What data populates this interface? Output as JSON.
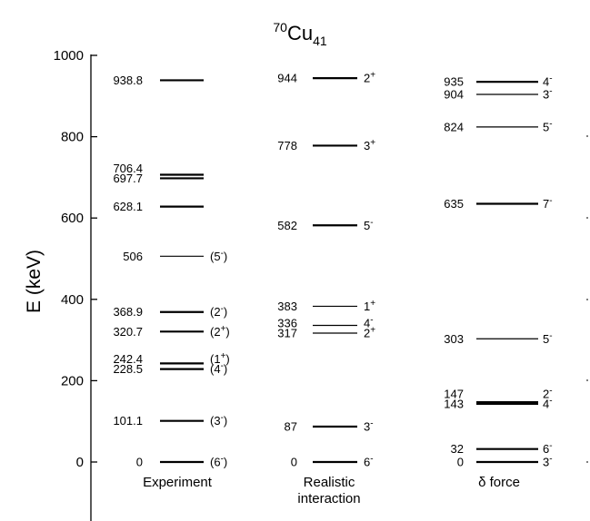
{
  "chart_data": {
    "type": "level-scheme",
    "title": {
      "pre_sup": "70",
      "base": "Cu",
      "sub": "41"
    },
    "ylabel": "E (keV)",
    "ylim": [
      -250,
      1000
    ],
    "yticks": [
      0,
      200,
      400,
      600,
      800,
      1000
    ],
    "columns": [
      {
        "name": "Experiment",
        "levels": [
          {
            "energy": 0,
            "label": "0",
            "spin": {
              "base": "(6",
              "sup": "-",
              "tail": ")"
            },
            "thick": true
          },
          {
            "energy": 101.1,
            "label": "101.1",
            "spin": {
              "base": "(3",
              "sup": "-",
              "tail": ")"
            },
            "thick": true
          },
          {
            "energy": 228.5,
            "label": "228.5",
            "spin": {
              "base": "(4",
              "sup": "-",
              "tail": ")"
            },
            "thick": true
          },
          {
            "energy": 242.4,
            "label": "242.4",
            "spin": {
              "base": "(1",
              "sup": "+",
              "tail": ")"
            },
            "thick": true
          },
          {
            "energy": 320.7,
            "label": "320.7",
            "spin": {
              "base": "(2",
              "sup": "+",
              "tail": ")"
            },
            "thick": true
          },
          {
            "energy": 368.9,
            "label": "368.9",
            "spin": {
              "base": "(2",
              "sup": "-",
              "tail": ")"
            },
            "thick": true
          },
          {
            "energy": 506,
            "label": "506",
            "spin": {
              "base": "(5",
              "sup": "-",
              "tail": ")"
            },
            "thick": false
          },
          {
            "energy": 628.1,
            "label": "628.1",
            "spin": null,
            "thick": true
          },
          {
            "energy": 697.7,
            "label": "697.7",
            "spin": null,
            "thick": true
          },
          {
            "energy": 706.4,
            "label": "706.4",
            "spin": null,
            "thick": true
          },
          {
            "energy": 938.8,
            "label": "938.8",
            "spin": null,
            "thick": true
          }
        ]
      },
      {
        "name": "Realistic interaction",
        "name_lines": [
          "Realistic",
          "interaction"
        ],
        "levels": [
          {
            "energy": 0,
            "label": "0",
            "spin": {
              "base": "6",
              "sup": "-",
              "tail": ""
            },
            "thick": true
          },
          {
            "energy": 87,
            "label": "87",
            "spin": {
              "base": "3",
              "sup": "-",
              "tail": ""
            },
            "thick": true
          },
          {
            "energy": 317,
            "label": "317",
            "spin": {
              "base": "2",
              "sup": "+",
              "tail": ""
            },
            "thick": false
          },
          {
            "energy": 336,
            "label": "336",
            "spin": {
              "base": "4",
              "sup": "-",
              "tail": ""
            },
            "thick": false
          },
          {
            "energy": 383,
            "label": "383",
            "spin": {
              "base": "1",
              "sup": "+",
              "tail": ""
            },
            "thick": false
          },
          {
            "energy": 582,
            "label": "582",
            "spin": {
              "base": "5",
              "sup": "-",
              "tail": ""
            },
            "thick": true
          },
          {
            "energy": 778,
            "label": "778",
            "spin": {
              "base": "3",
              "sup": "+",
              "tail": ""
            },
            "thick": true
          },
          {
            "energy": 944,
            "label": "944",
            "spin": {
              "base": "2",
              "sup": "+",
              "tail": ""
            },
            "thick": true
          }
        ]
      },
      {
        "name": "δ  force",
        "name_lines": [
          "δ  force"
        ],
        "levels": [
          {
            "energy": 0,
            "label": "0",
            "spin": {
              "base": "3",
              "sup": "-",
              "tail": ""
            },
            "thick": true
          },
          {
            "energy": 32,
            "label": "32",
            "spin": {
              "base": "6",
              "sup": "-",
              "tail": ""
            },
            "thick": true
          },
          {
            "energy": 143,
            "label": "143",
            "spin": {
              "base": "4",
              "sup": "-",
              "tail": ""
            },
            "thick": true
          },
          {
            "energy": 147,
            "label": "147",
            "spin": {
              "base": "2",
              "sup": "-",
              "tail": ""
            },
            "thick": true
          },
          {
            "energy": 303,
            "label": "303",
            "spin": {
              "base": "5",
              "sup": "-",
              "tail": ""
            },
            "thick": false
          },
          {
            "energy": 635,
            "label": "635",
            "spin": {
              "base": "7",
              "sup": "-",
              "tail": ""
            },
            "thick": true
          },
          {
            "energy": 824,
            "label": "824",
            "spin": {
              "base": "5",
              "sup": "-",
              "tail": ""
            },
            "thick": false
          },
          {
            "energy": 904,
            "label": "904",
            "spin": {
              "base": "3",
              "sup": "-",
              "tail": ""
            },
            "thick": false
          },
          {
            "energy": 935,
            "label": "935",
            "spin": {
              "base": "4",
              "sup": "-",
              "tail": ""
            },
            "thick": true
          }
        ]
      }
    ]
  }
}
